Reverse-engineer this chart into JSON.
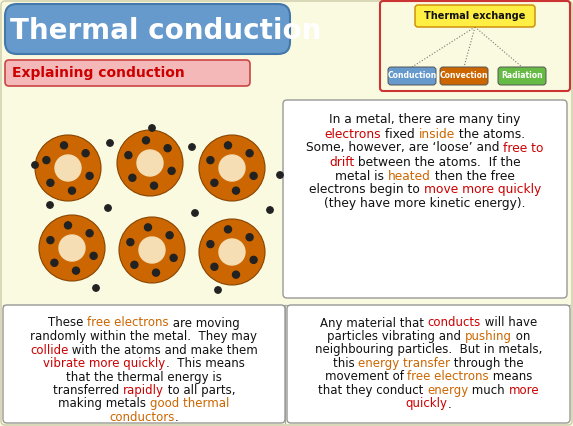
{
  "bg_color": "#FAFAE0",
  "title_text": "Thermal conduction",
  "title_bg": "#6699CC",
  "title_fg": "#FFFFFF",
  "subtitle_text": "Explaining conduction",
  "subtitle_bg": "#F4B8B8",
  "subtitle_fg": "#CC0000",
  "subtitle_border": "#CC4444",
  "diagram_box_color": "#FFEE44",
  "diagram_title": "Thermal exchange",
  "conduction_color": "#6699CC",
  "convection_color": "#CC6600",
  "radiation_color": "#66BB44",
  "top_right_text1": "Conduction",
  "top_right_text2": "Convection",
  "top_right_text3": "Radiation",
  "atom_outer_color": "#CC6600",
  "atom_inner_color": "#F5DEB3",
  "atom_electron_color": "#222222",
  "border_color": "#888888",
  "text_black": "#111111",
  "text_red": "#CC0000",
  "text_orange": "#CC6600",
  "text_dark_orange": "#CC4400",
  "white": "#FFFFFF",
  "outer_border": "#CC3333",
  "title_border": "#4477AA"
}
